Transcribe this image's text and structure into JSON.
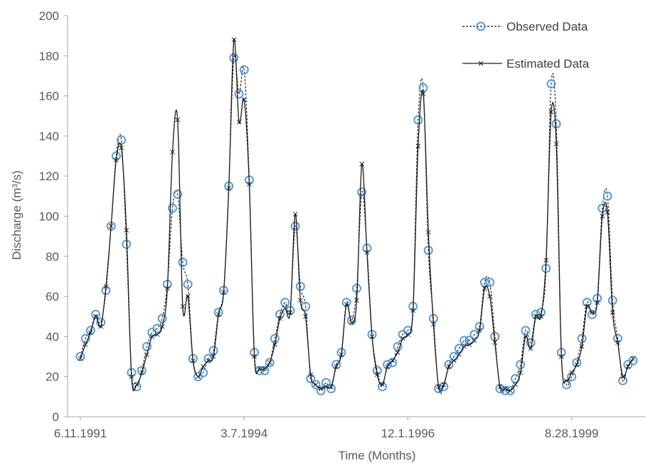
{
  "colors": {
    "observed": "#5b9bd5",
    "estimated": "#1a1a1a",
    "axis": "#a6a6a6",
    "text": "#595959"
  },
  "chart_data": {
    "type": "line",
    "title": "",
    "xlabel": "Time (Months)",
    "ylabel": "Discharge (m³/s)",
    "ylim": [
      0,
      200
    ],
    "yticks": [
      0,
      20,
      40,
      60,
      80,
      100,
      120,
      140,
      160,
      180,
      200
    ],
    "x_tick_labels": [
      "6.11.1991",
      "3.7.1994",
      "12.1.1996",
      "8.28.1999"
    ],
    "x_tick_index": [
      0,
      32,
      64,
      96
    ],
    "grid": false,
    "legend": "top-right",
    "x_unit": "month index (0 = June 1991)",
    "series": [
      {
        "name": "Observed Data",
        "style": "dashed-line-circle-markers",
        "values": [
          30,
          39,
          43,
          51,
          47,
          63,
          95,
          130,
          138,
          86,
          22,
          15,
          23,
          35,
          42,
          44,
          49,
          66,
          104,
          111,
          77,
          66,
          29,
          20,
          22,
          29,
          33,
          52,
          63,
          115,
          179,
          161,
          173,
          118,
          32,
          23,
          23,
          27,
          39,
          51,
          57,
          53,
          95,
          65,
          55,
          19,
          16,
          13,
          17,
          14,
          26,
          32,
          57,
          48,
          64,
          112,
          84,
          41,
          23,
          15,
          26,
          27,
          35,
          41,
          43,
          55,
          148,
          164,
          83,
          49,
          14,
          15,
          26,
          30,
          34,
          38,
          38,
          41,
          45,
          67,
          67,
          40,
          14,
          13,
          13,
          19,
          26,
          43,
          37,
          51,
          52,
          74,
          166,
          146,
          32,
          16,
          20,
          27,
          39,
          57,
          51,
          59,
          104,
          110,
          58,
          39,
          18,
          26,
          28
        ]
      },
      {
        "name": "Estimated Data",
        "style": "solid-line-x-markers",
        "values": [
          29,
          36,
          42,
          50,
          45,
          65,
          95,
          128,
          134,
          93,
          20,
          16,
          22,
          31,
          40,
          41,
          45,
          64,
          132,
          148,
          55,
          60,
          28,
          20,
          25,
          28,
          30,
          51,
          62,
          114,
          188,
          147,
          158,
          116,
          30,
          24,
          24,
          27,
          36,
          49,
          54,
          52,
          101,
          58,
          50,
          21,
          16,
          14,
          15,
          15,
          25,
          31,
          56,
          47,
          58,
          126,
          82,
          40,
          21,
          16,
          25,
          28,
          32,
          39,
          41,
          53,
          135,
          161,
          92,
          46,
          15,
          16,
          25,
          28,
          31,
          35,
          36,
          38,
          43,
          64,
          60,
          37,
          15,
          14,
          13,
          16,
          22,
          40,
          34,
          50,
          50,
          78,
          152,
          136,
          30,
          18,
          22,
          26,
          35,
          55,
          52,
          57,
          100,
          102,
          52,
          37,
          20,
          25,
          29
        ]
      }
    ]
  }
}
